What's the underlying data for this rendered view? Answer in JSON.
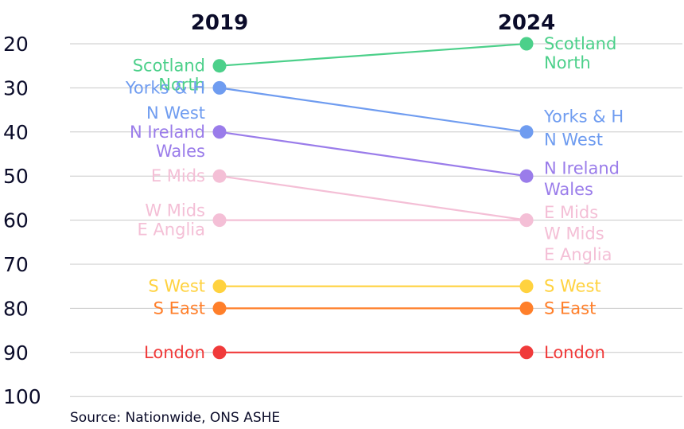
{
  "chart_data": {
    "type": "line",
    "x": [
      "2019",
      "2024"
    ],
    "ylim": [
      20,
      100
    ],
    "yticks": [
      "20",
      "30",
      "40",
      "50",
      "60",
      "70",
      "80",
      "90",
      "100"
    ],
    "ytick_values": [
      20,
      30,
      40,
      50,
      60,
      70,
      80,
      90,
      100
    ],
    "y_inverted": true,
    "grid": true,
    "source": "Source: Nationwide, ONS ASHE",
    "series": [
      {
        "color": "#4cd08a",
        "values": [
          25,
          20
        ]
      },
      {
        "color": "#6f9cf0",
        "values": [
          30,
          40
        ]
      },
      {
        "color": "#9a7cea",
        "values": [
          40,
          50
        ]
      },
      {
        "color": "#f4bfd6",
        "values": [
          50,
          60
        ]
      },
      {
        "color": "#f4bfd6",
        "values": [
          60,
          60
        ]
      },
      {
        "color": "#ffd23f",
        "values": [
          75,
          75
        ]
      },
      {
        "color": "#ff7f2a",
        "values": [
          80,
          80
        ]
      },
      {
        "color": "#f03a3a",
        "values": [
          90,
          90
        ]
      }
    ],
    "labels_2019": [
      {
        "text": "Scotland",
        "value": 25,
        "color": "#4cd08a",
        "line": 0
      },
      {
        "text": "North",
        "value": 25,
        "color": "#4cd08a",
        "line": 1
      },
      {
        "text": "Yorks & H",
        "value": 30,
        "color": "#6f9cf0",
        "line": 0
      },
      {
        "text": "N West",
        "value": 40,
        "color": "#6f9cf0",
        "line": -1
      },
      {
        "text": "N Ireland",
        "value": 40,
        "color": "#9a7cea",
        "line": 0
      },
      {
        "text": "Wales",
        "value": 40,
        "color": "#9a7cea",
        "line": 1
      },
      {
        "text": "E Mids",
        "value": 50,
        "color": "#f4bfd6",
        "line": 0
      },
      {
        "text": "W Mids",
        "value": 60,
        "color": "#f4bfd6",
        "line": -0.5
      },
      {
        "text": "E Anglia",
        "value": 60,
        "color": "#f4bfd6",
        "line": 0.5
      },
      {
        "text": "S West",
        "value": 75,
        "color": "#ffd23f",
        "line": 0
      },
      {
        "text": "S East",
        "value": 80,
        "color": "#ff7f2a",
        "line": 0
      },
      {
        "text": "London",
        "value": 90,
        "color": "#f03a3a",
        "line": 0
      }
    ],
    "labels_2024": [
      {
        "text": "Scotland",
        "value": 20,
        "color": "#4cd08a",
        "line": 0
      },
      {
        "text": "North",
        "value": 20,
        "color": "#4cd08a",
        "line": 1
      },
      {
        "text": "Yorks & H",
        "value": 40,
        "color": "#6f9cf0",
        "line": -0.8
      },
      {
        "text": "N West",
        "value": 40,
        "color": "#6f9cf0",
        "line": 0.4
      },
      {
        "text": "N Ireland",
        "value": 50,
        "color": "#9a7cea",
        "line": -0.4
      },
      {
        "text": "Wales",
        "value": 50,
        "color": "#9a7cea",
        "line": 0.7
      },
      {
        "text": "E Mids",
        "value": 60,
        "color": "#f4bfd6",
        "line": -0.4
      },
      {
        "text": "W Mids",
        "value": 60,
        "color": "#f4bfd6",
        "line": 0.7
      },
      {
        "text": "E Anglia",
        "value": 60,
        "color": "#f4bfd6",
        "line": 1.8
      },
      {
        "text": "S West",
        "value": 75,
        "color": "#ffd23f",
        "line": 0
      },
      {
        "text": "S East",
        "value": 80,
        "color": "#ff7f2a",
        "line": 0
      },
      {
        "text": "London",
        "value": 90,
        "color": "#f03a3a",
        "line": 0
      }
    ]
  }
}
